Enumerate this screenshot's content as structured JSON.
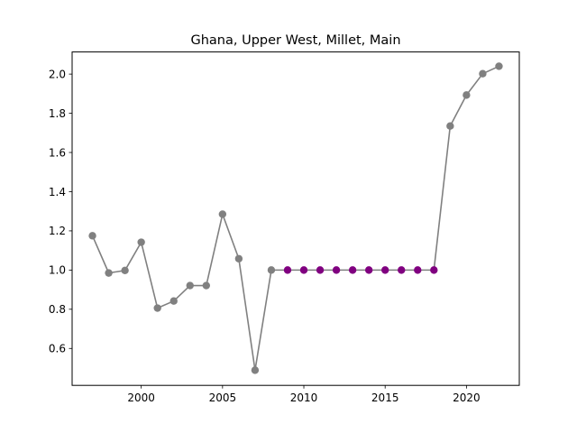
{
  "chart_data": {
    "type": "line",
    "title": "Ghana, Upper West, Millet, Main",
    "xlabel": "",
    "ylabel": "",
    "xlim": [
      1995.75,
      2023.25
    ],
    "ylim": [
      0.4116,
      2.1129
    ],
    "xticks": [
      2000,
      2005,
      2010,
      2015,
      2020
    ],
    "yticks": [
      0.6,
      0.8,
      1.0,
      1.2,
      1.4,
      1.6,
      1.8,
      2.0
    ],
    "xtick_labels": [
      "2000",
      "2005",
      "2010",
      "2015",
      "2020"
    ],
    "ytick_labels": [
      "0.6",
      "0.8",
      "1.0",
      "1.2",
      "1.4",
      "1.6",
      "1.8",
      "2.0"
    ],
    "grid": false,
    "line_color": "#808080",
    "x": [
      1997,
      1998,
      1999,
      2000,
      2001,
      2002,
      2003,
      2004,
      2005,
      2006,
      2007,
      2008,
      2009,
      2010,
      2011,
      2012,
      2013,
      2014,
      2015,
      2016,
      2017,
      2018,
      2019,
      2020,
      2021,
      2022
    ],
    "y": [
      1.175,
      0.985,
      0.998,
      1.142,
      0.806,
      0.842,
      0.921,
      0.921,
      1.285,
      1.058,
      0.489,
      1.0,
      1.0,
      1.0,
      1.0,
      1.0,
      1.0,
      1.0,
      1.0,
      1.0,
      1.0,
      1.0,
      1.735,
      1.893,
      2.002,
      2.04
    ],
    "point_colors": [
      "#808080",
      "#808080",
      "#808080",
      "#808080",
      "#808080",
      "#808080",
      "#808080",
      "#808080",
      "#808080",
      "#808080",
      "#808080",
      "#808080",
      "#800080",
      "#800080",
      "#800080",
      "#800080",
      "#800080",
      "#800080",
      "#800080",
      "#800080",
      "#800080",
      "#800080",
      "#808080",
      "#808080",
      "#808080",
      "#808080"
    ]
  }
}
